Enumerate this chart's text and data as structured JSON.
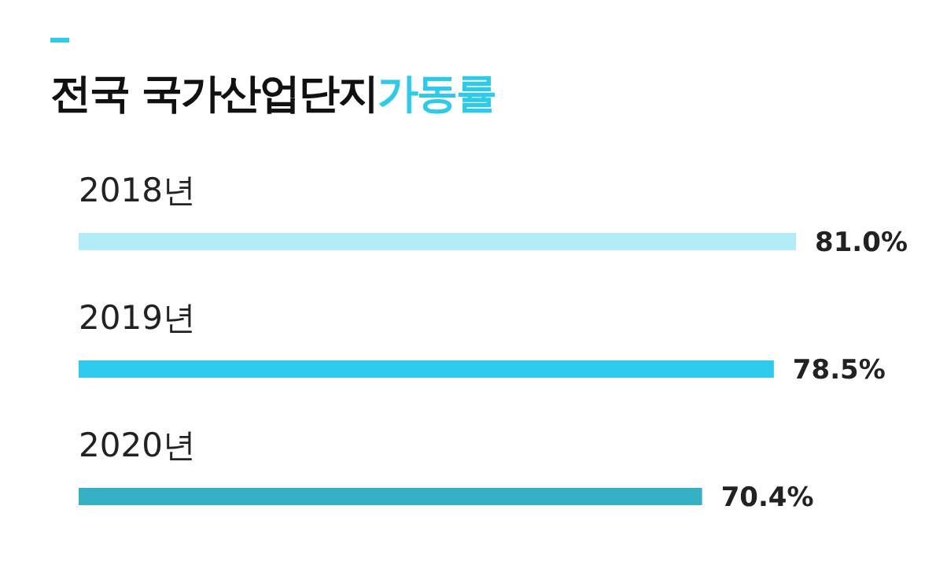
{
  "chart_data": {
    "type": "bar",
    "orientation": "horizontal",
    "title": "전국 국가산업단지가동률",
    "categories": [
      "2018년",
      "2019년",
      "2020년"
    ],
    "values": [
      81.0,
      78.5,
      70.4
    ],
    "colors": [
      "#b3ecf6",
      "#2ecbef",
      "#35b0c5"
    ],
    "value_labels": [
      "81.0%",
      "78.5%",
      "70.4%"
    ],
    "tick_labels": "y",
    "grid": false,
    "legend": false
  }
}
